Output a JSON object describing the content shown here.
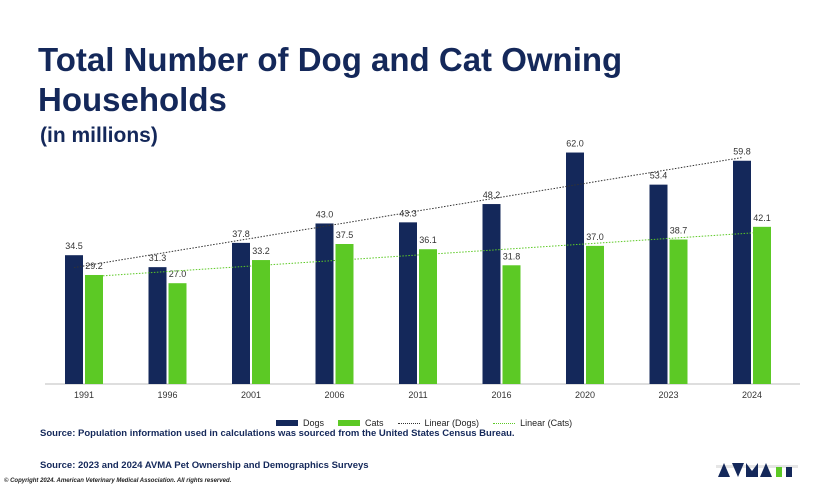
{
  "header": {
    "title": "Total Number of Dog and Cat Owning Households",
    "subtitle": "(in millions)"
  },
  "chart_data": {
    "type": "bar",
    "categories": [
      "1991",
      "1996",
      "2001",
      "2006",
      "2011",
      "2016",
      "2020",
      "2023",
      "2024"
    ],
    "series": [
      {
        "name": "Dogs",
        "color": "#14285a",
        "values": [
          34.5,
          31.3,
          37.8,
          43.0,
          43.3,
          48.2,
          62.0,
          53.4,
          59.8
        ],
        "labels": [
          "34.5",
          "31.3",
          "37.8",
          "43.0",
          "43.3",
          "48.2",
          "62.0",
          "53.4",
          "59.8"
        ]
      },
      {
        "name": "Cats",
        "color": "#5cc925",
        "values": [
          29.2,
          27.0,
          33.2,
          37.5,
          36.1,
          31.8,
          37.0,
          38.7,
          42.1
        ],
        "labels": [
          "29.2",
          "27.0",
          "33.2",
          "37.5",
          "36.1",
          "31.8",
          "37.0",
          "38.7",
          "42.1"
        ]
      }
    ],
    "trendlines": [
      {
        "name": "Linear (Dogs)",
        "series": "Dogs",
        "color": "#333333"
      },
      {
        "name": "Linear (Cats)",
        "series": "Cats",
        "color": "#5cc925"
      }
    ],
    "ylim": [
      0,
      70
    ],
    "grid": false,
    "legend": "bottom"
  },
  "footer": {
    "source1": "Source: Population information used in calculations was sourced from the United States Census Bureau.",
    "source2": "Source: 2023 and 2024 AVMA Pet Ownership and Demographics Surveys",
    "copyright": "© Copyright 2024. American Veterinary Medical Association. All rights reserved."
  }
}
